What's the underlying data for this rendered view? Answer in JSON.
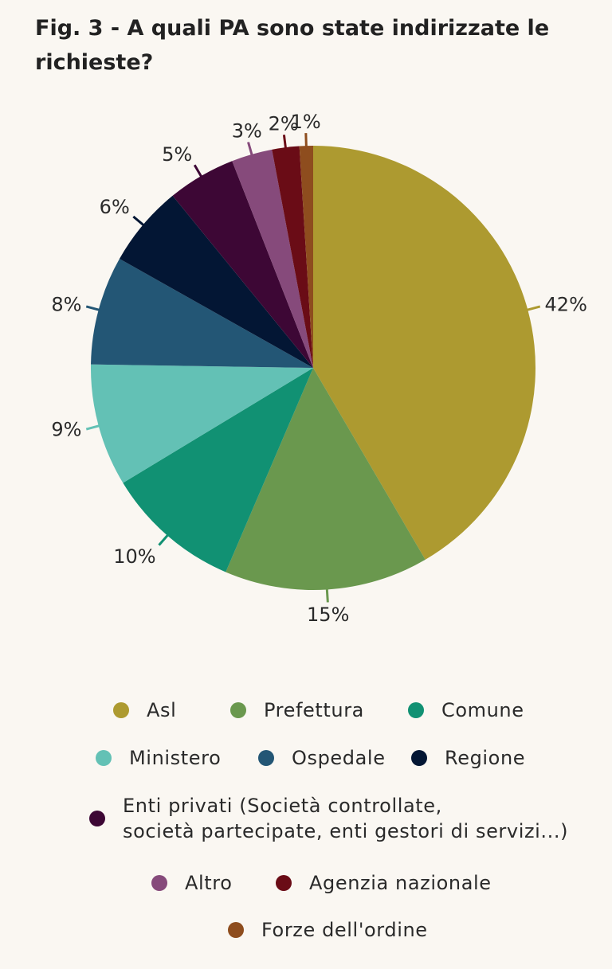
{
  "chart_data": {
    "type": "pie",
    "title": "Fig. 3 - A quali PA sono state indirizzate le richieste?",
    "unit": "%",
    "slices": [
      {
        "name": "Asl",
        "value": 42,
        "label": "42%",
        "color": "#ad9a30"
      },
      {
        "name": "Prefettura",
        "value": 15,
        "label": "15%",
        "color": "#6a984e"
      },
      {
        "name": "Comune",
        "value": 10,
        "label": "10%",
        "color": "#119173"
      },
      {
        "name": "Ministero",
        "value": 9,
        "label": "9%",
        "color": "#63c1b5"
      },
      {
        "name": "Ospedale",
        "value": 8,
        "label": "8%",
        "color": "#235675"
      },
      {
        "name": "Regione",
        "value": 6,
        "label": "6%",
        "color": "#031634"
      },
      {
        "name": "Enti privati (Società controllate, società partecipate, enti gestori di servizi...)",
        "value": 5,
        "label": "5%",
        "color": "#3d0735"
      },
      {
        "name": "Altro",
        "value": 3,
        "label": "3%",
        "color": "#864a7b"
      },
      {
        "name": "Agenzia nazionale",
        "value": 2,
        "label": "2%",
        "color": "#6a0c16"
      },
      {
        "name": "Forze dell'ordine",
        "value": 1,
        "label": "1%",
        "color": "#8e4d1e"
      }
    ],
    "legend_position": "bottom",
    "start_angle": "12 o'clock",
    "direction": "clockwise"
  }
}
